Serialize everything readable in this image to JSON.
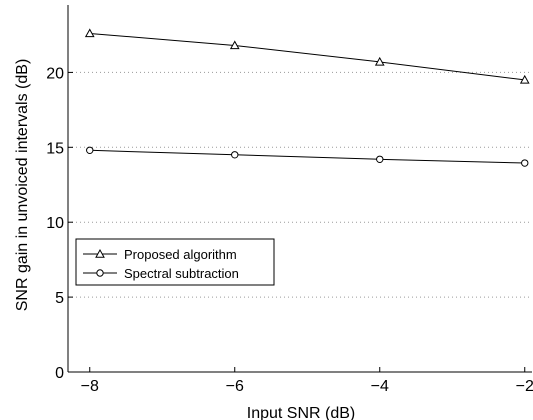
{
  "chart_data": {
    "type": "line",
    "xlabel": "Input SNR (dB)",
    "ylabel": "SNR gain in unvoiced intervals (dB)",
    "xlim": [
      -8.3,
      -1.9
    ],
    "ylim": [
      0,
      24.5
    ],
    "xticks": [
      -8,
      -6,
      -4,
      -2
    ],
    "xtick_labels": [
      "−8",
      "−6",
      "−4",
      "−2"
    ],
    "yticks": [
      0,
      5,
      10,
      15,
      20
    ],
    "ytick_labels": [
      "0",
      "5",
      "10",
      "15",
      "20"
    ],
    "grid": "horizontal dotted",
    "legend_position": "center-left",
    "series": [
      {
        "name": "Proposed algorithm",
        "marker": "triangle",
        "x": [
          -8,
          -6,
          -4,
          -2
        ],
        "y": [
          22.6,
          21.8,
          20.7,
          19.5
        ],
        "color": "#000000"
      },
      {
        "name": "Spectral subtraction",
        "marker": "circle",
        "x": [
          -8,
          -6,
          -4,
          -2
        ],
        "y": [
          14.8,
          14.5,
          14.2,
          13.95
        ],
        "color": "#000000"
      }
    ]
  }
}
